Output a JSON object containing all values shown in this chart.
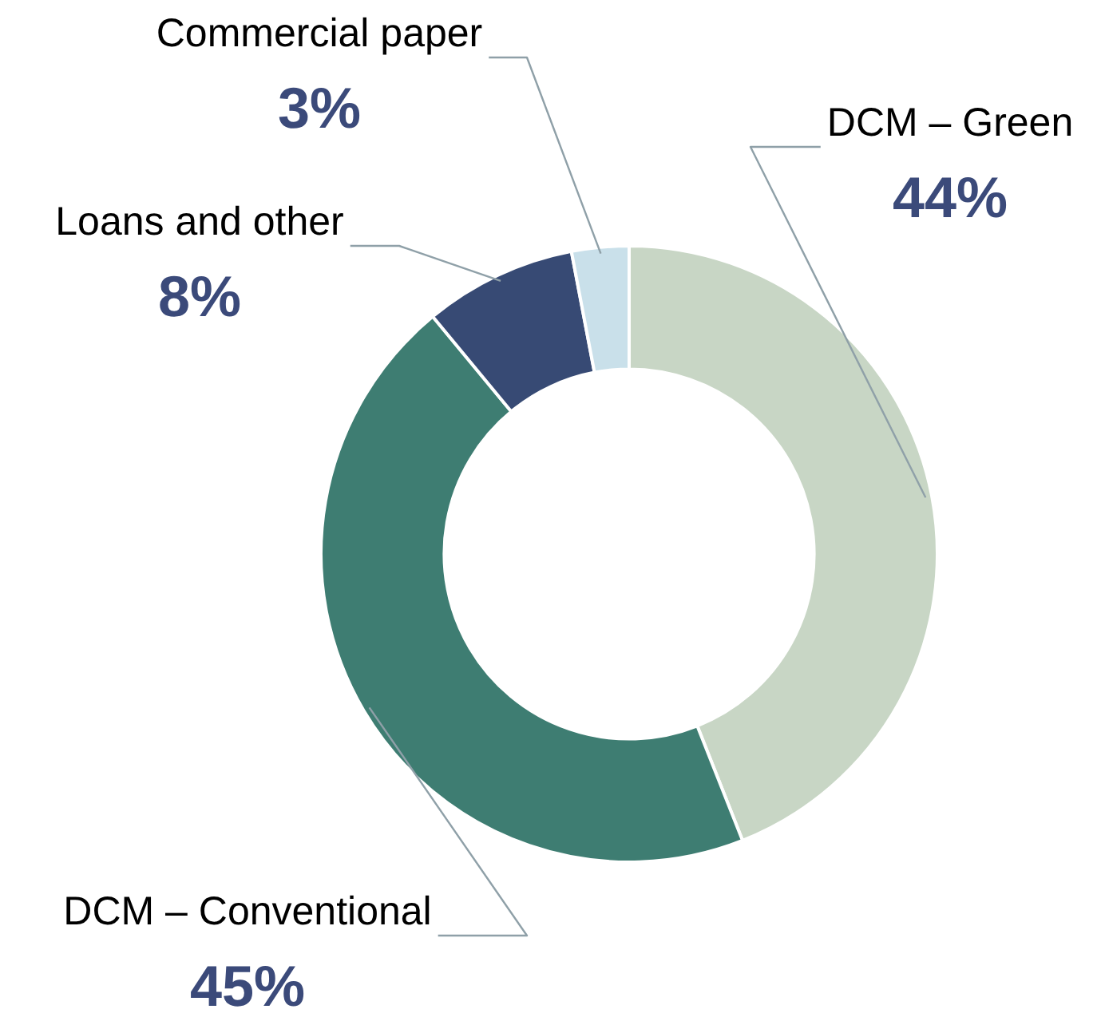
{
  "chart_data": {
    "type": "donut",
    "categories": [
      "DCM – Green",
      "DCM – Conventional",
      "Loans and other",
      "Commercial paper"
    ],
    "values": [
      44,
      45,
      8,
      3
    ],
    "colors": [
      "#c8d6c5",
      "#3e7d72",
      "#374a74",
      "#c9e0ea"
    ],
    "value_labels": [
      "44%",
      "45%",
      "8%",
      "3%"
    ],
    "legend": false
  }
}
